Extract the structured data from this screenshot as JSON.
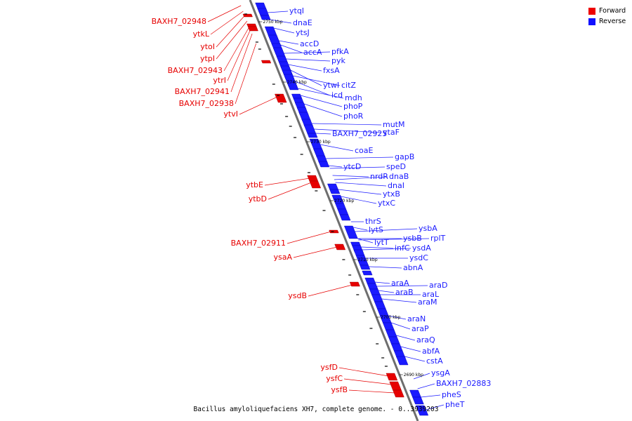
{
  "caption": "Bacillus amyloliquefaciens XH7, complete genome. - 0..3939203",
  "colors": {
    "forward": "#e60000",
    "reverse": "#1a1aff",
    "axis": "#6e6e6e"
  },
  "legend": [
    {
      "label": "Forward",
      "color": "#ee0000"
    },
    {
      "label": "Reverse",
      "color": "#1111ff"
    }
  ],
  "kbp_ticks": [
    "2750 kbp",
    "2740 kbp",
    "2730 kbp",
    "2720 kbp",
    "2710 kbp",
    "2700 kbp",
    "2690 kbp"
  ],
  "reverse_labels": [
    "ytqI",
    "dnaE",
    "ytsJ",
    "accD",
    "accA",
    "pfkA",
    "pyk",
    "fxsA",
    "ytwI",
    "citZ",
    "icd",
    "mdh",
    "phoP",
    "phoR",
    "mutM",
    "ytaF",
    "BAXH7_02925",
    "coaE",
    "gapB",
    "ytcD",
    "speD",
    "nrdR",
    "dnaB",
    "dnaI",
    "ytxB",
    "ytxC",
    "thrS",
    "lytS",
    "ysbA",
    "lytT",
    "ysbB",
    "rplT",
    "infC",
    "ysdA",
    "ysdC",
    "abnA",
    "araA",
    "araD",
    "araB",
    "araL",
    "araM",
    "araN",
    "araP",
    "araQ",
    "abfA",
    "cstA",
    "ysgA",
    "BAXH7_02883",
    "pheS",
    "pheT"
  ],
  "forward_labels": [
    "BAXH7_02948",
    "ytkL",
    "ytoI",
    "ytpI",
    "BAXH7_02943",
    "ytrI",
    "BAXH7_02941",
    "BAXH7_02938",
    "ytvI",
    "ytbE",
    "ytbD",
    "BAXH7_02911",
    "ysaA",
    "ysdB",
    "ysfD",
    "ysfC",
    "ysfB"
  ]
}
